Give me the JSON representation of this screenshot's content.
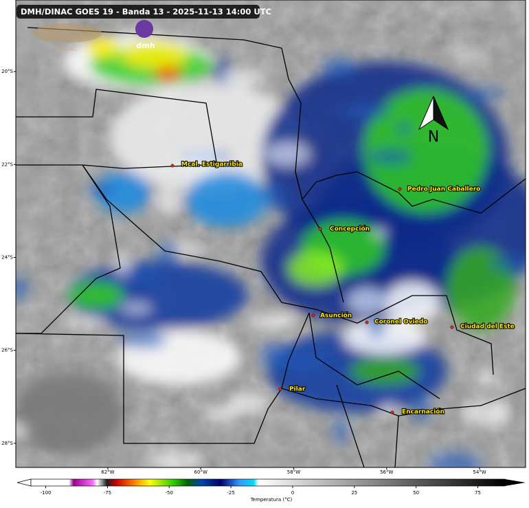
{
  "header": {
    "title": "DMH/DINAC GOES 19 - Banda 13 - 2025-11-13 14:00 UTC",
    "logos": [
      "DINAC",
      "dmh"
    ]
  },
  "map": {
    "xlim": [
      -63.98,
      -53.01
    ],
    "ylim": [
      -28.52,
      -18.46
    ],
    "lat_ticks": [
      {
        "value": -20,
        "label": "20°S"
      },
      {
        "value": -22,
        "label": "22°S"
      },
      {
        "value": -24,
        "label": "24°S"
      },
      {
        "value": -26,
        "label": "26°S"
      },
      {
        "value": -28,
        "label": "28°S"
      }
    ],
    "lon_ticks": [
      {
        "value": -62,
        "label": "62°W"
      },
      {
        "value": -60,
        "label": "60°W"
      },
      {
        "value": -58,
        "label": "58°W"
      },
      {
        "value": -56,
        "label": "56°W"
      },
      {
        "value": -54,
        "label": "54°W"
      }
    ],
    "north": "N",
    "cities": [
      "Mcal. Estigarribia",
      "Pedro Juan Caballero",
      "Concepción",
      "Asunción",
      "Coronel Oviedo",
      "Ciudad del Este",
      "Pilar",
      "Encarnación"
    ]
  },
  "colorbar": {
    "label": "Temperatura (°C)",
    "lim": [
      -106,
      86
    ],
    "ticks": [
      -100,
      -75,
      -50,
      -25,
      0,
      25,
      50,
      75
    ]
  }
}
